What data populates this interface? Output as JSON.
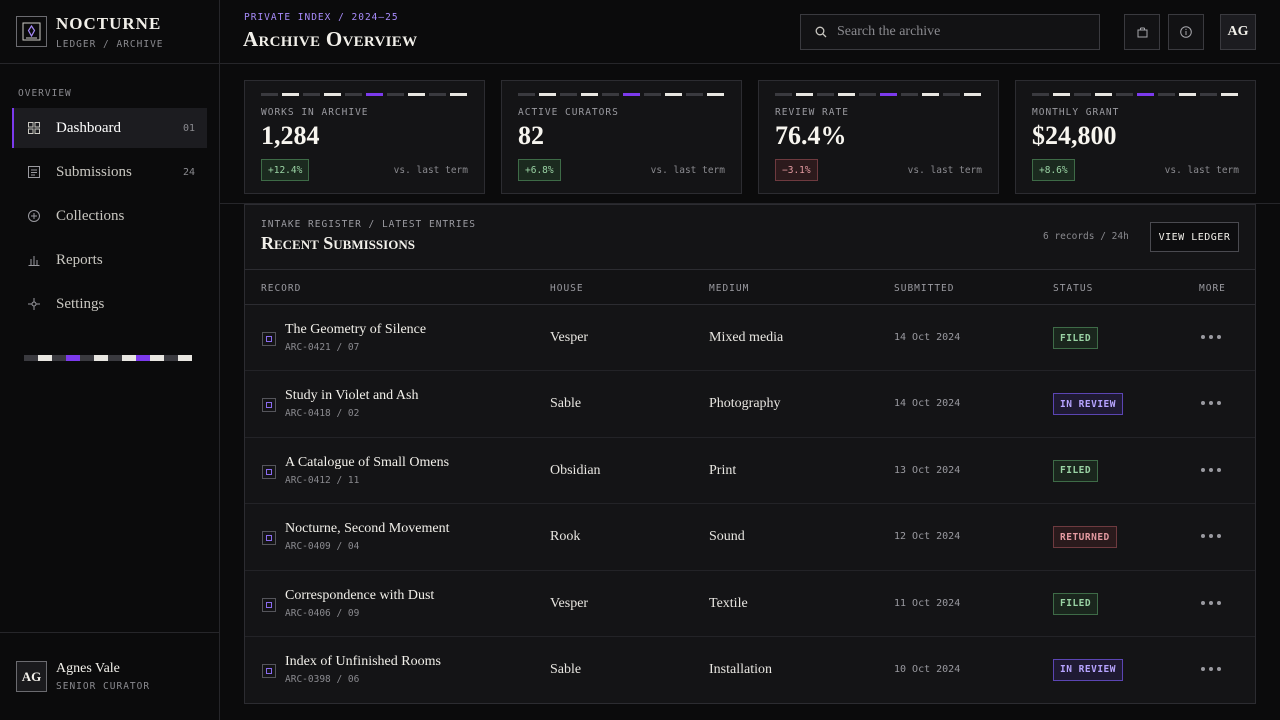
{
  "brand": {
    "name": "NOCTURNE",
    "subtitle": "LEDGER / ARCHIVE"
  },
  "sidebar": {
    "section": "OVERVIEW",
    "items": [
      {
        "label": "Dashboard",
        "count": "01",
        "icon": "grid-icon",
        "active": true
      },
      {
        "label": "Submissions",
        "count": "24",
        "icon": "document-icon",
        "active": false
      },
      {
        "label": "Collections",
        "count": "",
        "icon": "plus-circle-icon",
        "active": false
      },
      {
        "label": "Reports",
        "count": "",
        "icon": "bar-chart-icon",
        "active": false
      },
      {
        "label": "Settings",
        "count": "",
        "icon": "sparkle-icon",
        "active": false
      }
    ],
    "strip_colors": [
      "#3a3a3f",
      "#e8e6e1",
      "#3a3a3f",
      "#7c3aed",
      "#3a3a3f",
      "#e8e6e1",
      "#3a3a3f",
      "#e8e6e1",
      "#7c3aed",
      "#e8e6e1",
      "#3a3a3f",
      "#e8e6e1"
    ]
  },
  "user": {
    "initials": "AG",
    "name": "Agnes Vale",
    "role": "SENIOR CURATOR"
  },
  "header": {
    "eyebrow": "PRIVATE INDEX / 2024–25",
    "title": "Archive Overview",
    "search_placeholder": "Search the archive",
    "avatar": "AG"
  },
  "kpis": [
    {
      "label": "WORKS IN ARCHIVE",
      "value": "1,284",
      "delta": "+12.4%",
      "trend": "up",
      "compare": "vs. last term"
    },
    {
      "label": "ACTIVE CURATORS",
      "value": "82",
      "delta": "+6.8%",
      "trend": "up",
      "compare": "vs. last term"
    },
    {
      "label": "REVIEW RATE",
      "value": "76.4%",
      "delta": "−3.1%",
      "trend": "down",
      "compare": "vs. last term"
    },
    {
      "label": "MONTHLY GRANT",
      "value": "$24,800",
      "delta": "+8.6%",
      "trend": "up",
      "compare": "vs. last term"
    }
  ],
  "panel": {
    "eyebrow": "INTAKE REGISTER / LATEST ENTRIES",
    "title": "Recent Submissions",
    "meta": "6 records / 24h",
    "button": "VIEW LEDGER",
    "columns": [
      "RECORD",
      "HOUSE",
      "MEDIUM",
      "SUBMITTED",
      "STATUS",
      "MORE"
    ],
    "rows": [
      {
        "title": "The Geometry of Silence",
        "id": "ARC-0421 / 07",
        "house": "Vesper",
        "medium": "Mixed media",
        "date": "14 Oct 2024",
        "status": "FILED"
      },
      {
        "title": "Study in Violet and Ash",
        "id": "ARC-0418 / 02",
        "house": "Sable",
        "medium": "Photography",
        "date": "14 Oct 2024",
        "status": "IN REVIEW"
      },
      {
        "title": "A Catalogue of Small Omens",
        "id": "ARC-0412 / 11",
        "house": "Obsidian",
        "medium": "Print",
        "date": "13 Oct 2024",
        "status": "FILED"
      },
      {
        "title": "Nocturne, Second Movement",
        "id": "ARC-0409 / 04",
        "house": "Rook",
        "medium": "Sound",
        "date": "12 Oct 2024",
        "status": "RETURNED"
      },
      {
        "title": "Correspondence with Dust",
        "id": "ARC-0406 / 09",
        "house": "Vesper",
        "medium": "Textile",
        "date": "11 Oct 2024",
        "status": "FILED"
      },
      {
        "title": "Index of Unfinished Rooms",
        "id": "ARC-0398 / 06",
        "house": "Sable",
        "medium": "Installation",
        "date": "10 Oct 2024",
        "status": "IN REVIEW"
      }
    ]
  },
  "colors": {
    "accent": "#7c3aed",
    "background": "#0b0b0c",
    "panel": "#141416"
  }
}
